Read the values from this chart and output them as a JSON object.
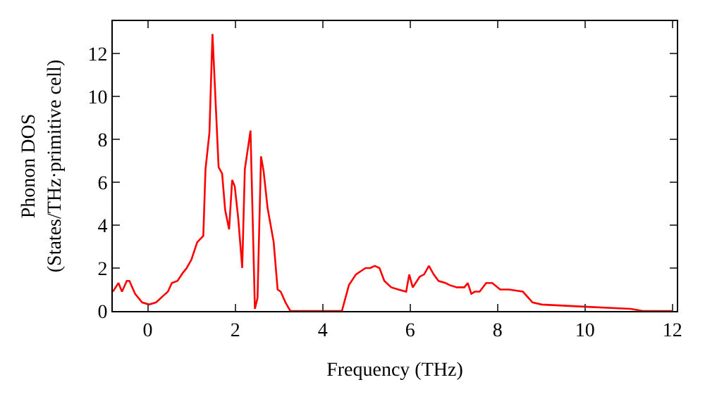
{
  "chart_data": {
    "type": "line",
    "xlabel": "Frequency (THz)",
    "ylabel": "Phonon DOS\n(States/THz·primitive cell)",
    "xlim": [
      -0.8,
      12.1
    ],
    "ylim": [
      0,
      13.5
    ],
    "xticks": [
      0,
      2,
      4,
      6,
      8,
      10,
      12
    ],
    "yticks": [
      0,
      2,
      4,
      6,
      8,
      10,
      12
    ],
    "legend": false,
    "marker": "none",
    "line_style": "solid",
    "series": [
      {
        "color": "#ff0000",
        "x": [
          -0.8,
          -0.67,
          -0.59,
          -0.48,
          -0.42,
          -0.29,
          -0.13,
          0.03,
          0.19,
          0.35,
          0.46,
          0.55,
          0.68,
          0.81,
          0.89,
          1.0,
          1.13,
          1.27,
          1.32,
          1.41,
          1.48,
          1.62,
          1.7,
          1.77,
          1.86,
          1.93,
          1.99,
          2.07,
          2.16,
          2.22,
          2.35,
          2.45,
          2.51,
          2.59,
          2.65,
          2.74,
          2.88,
          2.97,
          3.04,
          3.15,
          3.26,
          4.44,
          4.6,
          4.76,
          4.98,
          5.09,
          5.19,
          5.3,
          5.41,
          5.57,
          5.73,
          5.91,
          5.98,
          6.06,
          6.22,
          6.32,
          6.43,
          6.54,
          6.65,
          6.81,
          6.91,
          7.07,
          7.24,
          7.32,
          7.4,
          7.48,
          7.59,
          7.74,
          7.88,
          8.06,
          8.26,
          8.58,
          8.8,
          9.01,
          9.98,
          11.05,
          11.32,
          12.02
        ],
        "values": [
          0.9,
          1.3,
          0.9,
          1.4,
          1.4,
          0.8,
          0.4,
          0.3,
          0.4,
          0.7,
          0.9,
          1.3,
          1.4,
          1.8,
          2.0,
          2.4,
          3.2,
          3.5,
          6.6,
          8.3,
          12.9,
          6.7,
          6.4,
          4.7,
          3.8,
          6.1,
          5.8,
          4.3,
          2.0,
          6.6,
          8.4,
          0.1,
          0.6,
          7.2,
          6.5,
          4.8,
          3.2,
          1.0,
          0.9,
          0.4,
          0.0,
          0.0,
          1.2,
          1.7,
          2.0,
          2.0,
          2.1,
          2.0,
          1.4,
          1.1,
          1.0,
          0.9,
          1.7,
          1.1,
          1.6,
          1.7,
          2.1,
          1.7,
          1.4,
          1.3,
          1.2,
          1.1,
          1.1,
          1.3,
          0.8,
          0.9,
          0.9,
          1.3,
          1.3,
          1.0,
          1.0,
          0.9,
          0.4,
          0.3,
          0.2,
          0.1,
          0.0,
          0.0
        ]
      }
    ]
  }
}
